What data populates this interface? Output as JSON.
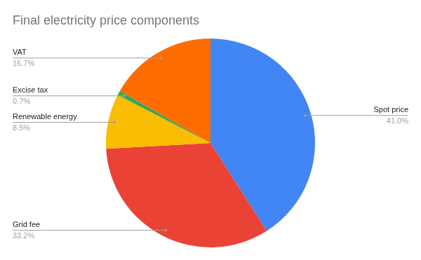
{
  "chart_data": {
    "type": "pie",
    "title": "Final electricity price components",
    "categories": [
      "Spot price",
      "Grid fee",
      "Renewable energy",
      "Excise tax",
      "VAT"
    ],
    "values": [
      41.0,
      33.2,
      8.5,
      0.7,
      16.7
    ],
    "value_labels": [
      "41.0%",
      "33.2%",
      "8.5%",
      "0.7%",
      "16.7%"
    ],
    "colors": [
      "#4285f4",
      "#ea4335",
      "#fbbc04",
      "#34a853",
      "#ff6d01"
    ],
    "data_labels": true
  }
}
